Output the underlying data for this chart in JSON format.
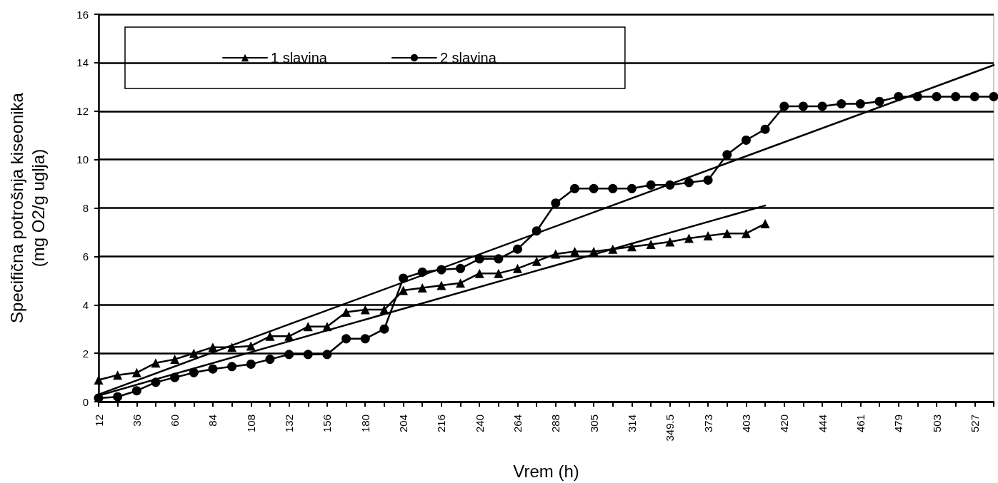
{
  "chart_data": {
    "type": "line",
    "xlabel": "Vrem (h)",
    "ylabel": "Specifična potrošnja kiseonika\n(mg O2/g uglja)",
    "categories": [
      "12",
      null,
      "36",
      null,
      "60",
      null,
      "84",
      null,
      "108",
      null,
      "132",
      null,
      "156",
      null,
      "180",
      null,
      "204",
      null,
      "216",
      null,
      "240",
      null,
      "264",
      null,
      "288",
      null,
      "305",
      null,
      "314",
      null,
      "349.5",
      null,
      "373",
      null,
      "403",
      null,
      "420",
      null,
      "444",
      null,
      "461",
      null,
      "479",
      null,
      "503",
      null,
      "527",
      null
    ],
    "series": [
      {
        "name": "1 slavina",
        "color": "#000000",
        "marker": "triangle",
        "values": [
          0.9,
          1.1,
          1.2,
          1.6,
          1.75,
          2.0,
          2.25,
          2.25,
          2.3,
          2.7,
          2.7,
          3.1,
          3.1,
          3.7,
          3.8,
          3.8,
          4.6,
          4.7,
          4.8,
          4.9,
          5.3,
          5.3,
          5.5,
          5.8,
          6.1,
          6.2,
          6.2,
          6.3,
          6.4,
          6.5,
          6.6,
          6.75,
          6.85,
          6.95,
          6.95,
          7.35,
          null,
          null,
          null,
          null,
          null,
          null,
          null,
          null,
          null,
          null,
          null,
          null
        ]
      },
      {
        "name": "2 slavina",
        "color": "#000000",
        "marker": "circle",
        "values": [
          0.15,
          0.2,
          0.45,
          0.8,
          1.0,
          1.2,
          1.35,
          1.45,
          1.55,
          1.75,
          1.95,
          1.95,
          1.95,
          2.6,
          2.6,
          3.0,
          5.1,
          5.35,
          5.45,
          5.5,
          5.9,
          5.9,
          6.3,
          7.05,
          8.2,
          8.8,
          8.8,
          8.8,
          8.8,
          8.95,
          8.95,
          9.05,
          9.15,
          10.2,
          10.8,
          11.25,
          12.2,
          12.2,
          12.2,
          12.3,
          12.3,
          12.4,
          12.6,
          12.6,
          12.6,
          12.6,
          12.6,
          12.6
        ]
      },
      {
        "color": "#000000",
        "marker": "none",
        "values": [
          0.25,
          null,
          null,
          null,
          null,
          null,
          null,
          null,
          null,
          null,
          null,
          null,
          null,
          null,
          null,
          null,
          null,
          null,
          null,
          null,
          null,
          null,
          null,
          null,
          null,
          null,
          null,
          null,
          null,
          null,
          null,
          null,
          null,
          null,
          null,
          8.1,
          null,
          null,
          null,
          null,
          null,
          null,
          null,
          null,
          null,
          null,
          null,
          null
        ]
      },
      {
        "color": "#000000",
        "marker": "none",
        "values": [
          0.3,
          null,
          null,
          null,
          null,
          null,
          null,
          null,
          null,
          null,
          null,
          null,
          null,
          null,
          null,
          null,
          null,
          null,
          null,
          null,
          null,
          null,
          null,
          null,
          null,
          null,
          null,
          null,
          null,
          null,
          null,
          null,
          null,
          null,
          null,
          null,
          null,
          null,
          null,
          null,
          null,
          null,
          null,
          null,
          null,
          null,
          null,
          13.9
        ]
      }
    ],
    "ylim": [
      0,
      16
    ],
    "yticks": [
      0,
      2,
      4,
      6,
      8,
      10,
      12,
      14,
      16
    ],
    "grid": "y",
    "legend": "top left"
  }
}
